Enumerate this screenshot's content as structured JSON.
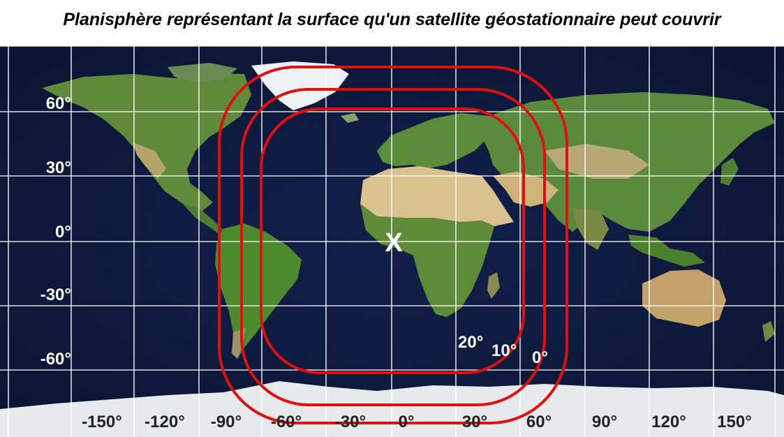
{
  "title": "Planisphère représentant la surface qu'un satellite géostationnaire peut couvrir",
  "latitude_labels": [
    "60°",
    "30°",
    "0°",
    "-30°",
    "-60°"
  ],
  "longitude_labels": [
    "-150°",
    "-120°",
    "-90°",
    "-60°",
    "-30°",
    "0°",
    "30°",
    "60°",
    "90°",
    "120°",
    "150°"
  ],
  "coverage_labels": [
    "20°",
    "10°",
    "0°"
  ],
  "satellite_marker": "X",
  "colors": {
    "ocean": "#101a3c",
    "land": "#5e8a3a",
    "desert": "#d6c08a",
    "ice": "#e8ecef",
    "grid": "#ffffff",
    "coverage": "#e01010"
  }
}
